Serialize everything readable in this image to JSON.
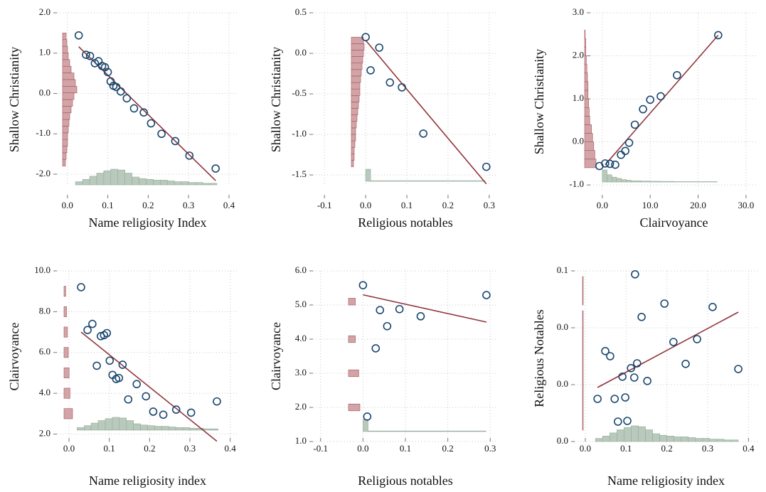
{
  "chart_data": [
    {
      "type": "scatter",
      "x_label": "Name religiosity Index",
      "y_label": "Shallow Christianity",
      "xlim": [
        -0.026,
        0.423
      ],
      "ylim": [
        -2.3,
        2.0
      ],
      "xticks": [
        {
          "value": 0,
          "label": "0.0"
        },
        0.1,
        0.2,
        0.3,
        0.4
      ],
      "yticks": [
        {
          "value": 2,
          "label": "2.0"
        },
        {
          "value": 1,
          "label": "1.0"
        },
        {
          "value": 0,
          "label": "0.0"
        },
        {
          "value": -1,
          "label": "-1.0"
        },
        {
          "value": -2,
          "label": "-2.0"
        }
      ],
      "grid": true,
      "point_color": "#1a476f",
      "fit_color": "#90353b",
      "x_hist_color": "#b9cabd",
      "y_hist_color": "#d3a4a7",
      "x": [
        0.028,
        0.046,
        0.056,
        0.068,
        0.077,
        0.086,
        0.093,
        0.1,
        0.107,
        0.114,
        0.121,
        0.132,
        0.147,
        0.165,
        0.189,
        0.207,
        0.233,
        0.267,
        0.302,
        0.367
      ],
      "y": [
        1.44,
        0.96,
        0.93,
        0.75,
        0.8,
        0.68,
        0.65,
        0.53,
        0.3,
        0.19,
        0.16,
        0.05,
        -0.12,
        -0.37,
        -0.47,
        -0.74,
        -1.0,
        -1.18,
        -1.54,
        -1.86
      ],
      "fit": {
        "x": [
          0.028,
          0.367
        ],
        "y": [
          1.16,
          -2.16
        ]
      },
      "x_hist": {
        "bins": [
          0.02,
          0.0375,
          0.055,
          0.0725,
          0.09,
          0.1075,
          0.125,
          0.1425,
          0.16,
          0.1775,
          0.195,
          0.2125,
          0.23,
          0.2475,
          0.265,
          0.2825,
          0.3,
          0.3175,
          0.335,
          0.3525,
          0.37
        ],
        "counts": [
          0.2,
          0.35,
          0.55,
          0.75,
          0.9,
          1.0,
          0.95,
          0.75,
          0.5,
          0.4,
          0.35,
          0.3,
          0.3,
          0.25,
          0.2,
          0.2,
          0.15,
          0.15,
          0.1,
          0.1
        ]
      },
      "y_hist": {
        "bins": [
          -1.8,
          -1.635,
          -1.47,
          -1.305,
          -1.14,
          -0.975,
          -0.81,
          -0.645,
          -0.48,
          -0.315,
          -0.15,
          0.015,
          0.18,
          0.345,
          0.51,
          0.675,
          0.84,
          1.005,
          1.17,
          1.335,
          1.5
        ],
        "counts": [
          0.2,
          0.25,
          0.3,
          0.35,
          0.35,
          0.4,
          0.45,
          0.5,
          0.6,
          0.7,
          0.8,
          1.0,
          0.9,
          0.8,
          0.6,
          0.5,
          0.4,
          0.35,
          0.3,
          0.25
        ]
      }
    },
    {
      "type": "scatter",
      "x_label": "Religious notables",
      "y_label": "Shallow Christianity",
      "xlim": [
        -0.128,
        0.321
      ],
      "ylim": [
        -1.64,
        0.5
      ],
      "xticks": [
        -0.1,
        {
          "value": 0,
          "label": "0.0"
        },
        0.1,
        0.2,
        0.3
      ],
      "yticks": [
        0.5,
        {
          "value": 0,
          "label": "0.0"
        },
        -0.5,
        {
          "value": -1,
          "label": "-1.0"
        },
        -1.5
      ],
      "grid": true,
      "point_color": "#1a476f",
      "fit_color": "#90353b",
      "x_hist_color": "#b9cabd",
      "y_hist_color": "#d3a4a7",
      "x": [
        0.0,
        0.033,
        0.012,
        0.059,
        0.088,
        0.14,
        0.293
      ],
      "y": [
        0.2,
        0.07,
        -0.21,
        -0.36,
        -0.42,
        -0.99,
        -1.4
      ],
      "fit": {
        "x": [
          0.0,
          0.293
        ],
        "y": [
          0.16,
          -1.61
        ]
      },
      "x_hist": {
        "bins": [
          0,
          0.012,
          0.29
        ],
        "counts": [
          1.0,
          0.05
        ]
      },
      "y_hist": {
        "bins": [
          -1.4,
          -1.32,
          -1.24,
          -1.16,
          -1.08,
          -1.0,
          -0.92,
          -0.84,
          -0.76,
          -0.68,
          -0.6,
          -0.52,
          -0.44,
          -0.36,
          -0.28,
          -0.2,
          -0.12,
          -0.04,
          0.04,
          0.12,
          0.2
        ],
        "counts": [
          0.15,
          0.2,
          0.2,
          0.25,
          0.3,
          0.3,
          0.35,
          0.4,
          0.45,
          0.5,
          0.55,
          0.6,
          0.6,
          0.65,
          0.7,
          0.75,
          0.8,
          0.85,
          0.9,
          0.85
        ]
      }
    },
    {
      "type": "scatter",
      "x_label": "Clairvoyance",
      "y_label": "Shallow Christianity",
      "xlim": [
        -2.5,
        32.4
      ],
      "ylim": [
        -1.13,
        3.0
      ],
      "xticks": [
        {
          "value": 0,
          "label": "0.0"
        },
        {
          "value": 10,
          "label": "10.0"
        },
        {
          "value": 20,
          "label": "20.0"
        },
        {
          "value": 30,
          "label": "30.0"
        }
      ],
      "yticks": [
        {
          "value": 3,
          "label": "3.0"
        },
        {
          "value": 2,
          "label": "2.0"
        },
        {
          "value": 1,
          "label": "1.0"
        },
        {
          "value": 0,
          "label": "0.0"
        },
        {
          "value": -1,
          "label": "-1.0"
        }
      ],
      "grid": true,
      "point_color": "#1a476f",
      "fit_color": "#90353b",
      "x_hist_color": "#b9cabd",
      "y_hist_color": "#d3a4a7",
      "x": [
        -0.6,
        0.6,
        1.6,
        2.7,
        3.9,
        4.8,
        5.6,
        6.8,
        8.5,
        10.0,
        12.2,
        15.6,
        24.2
      ],
      "y": [
        -0.56,
        -0.5,
        -0.51,
        -0.53,
        -0.3,
        -0.21,
        -0.02,
        0.4,
        0.76,
        0.98,
        1.06,
        1.55,
        2.48
      ],
      "fit": {
        "x": [
          0.6,
          24.2
        ],
        "y": [
          -0.53,
          2.48
        ]
      },
      "x_hist": {
        "bins": [
          0,
          1,
          2,
          3,
          4,
          5,
          6,
          8,
          10,
          12,
          15,
          24
        ],
        "counts": [
          1.0,
          0.6,
          0.4,
          0.3,
          0.2,
          0.15,
          0.1,
          0.08,
          0.06,
          0.05,
          0.03
        ]
      },
      "y_hist": {
        "bins": [
          -0.6,
          -0.4,
          -0.2,
          0,
          0.2,
          0.4,
          0.6,
          0.8,
          1.0,
          1.2,
          1.4,
          1.6,
          1.8,
          2.0,
          2.2,
          2.4,
          2.6
        ],
        "counts": [
          1.0,
          0.9,
          0.8,
          0.7,
          0.6,
          0.45,
          0.4,
          0.35,
          0.3,
          0.3,
          0.25,
          0.2,
          0.15,
          0.1,
          0.1,
          0.05
        ]
      }
    },
    {
      "type": "scatter",
      "x_label": "Name religiosity index",
      "y_label": "Clairvoyance",
      "xlim": [
        -0.03,
        0.42
      ],
      "ylim": [
        1.6,
        10
      ],
      "xticks": [
        {
          "value": 0,
          "label": "0.0"
        },
        0.1,
        0.2,
        0.3,
        0.4
      ],
      "yticks": [
        {
          "value": 10,
          "label": "10.0"
        },
        {
          "value": 8,
          "label": "8.0"
        },
        {
          "value": 6,
          "label": "6.0"
        },
        {
          "value": 4,
          "label": "4.0"
        },
        {
          "value": 2,
          "label": "2.0"
        }
      ],
      "grid": true,
      "point_color": "#1a476f",
      "fit_color": "#90353b",
      "x_hist_color": "#b9cabd",
      "y_hist_color": "#d3a4a7",
      "x": [
        0.03,
        0.046,
        0.058,
        0.069,
        0.079,
        0.087,
        0.094,
        0.101,
        0.108,
        0.117,
        0.124,
        0.133,
        0.147,
        0.168,
        0.191,
        0.209,
        0.234,
        0.266,
        0.303,
        0.367
      ],
      "y": [
        9.2,
        7.1,
        7.4,
        5.35,
        6.8,
        6.85,
        6.95,
        5.6,
        4.9,
        4.7,
        4.75,
        5.4,
        3.7,
        4.45,
        3.85,
        3.1,
        2.95,
        3.2,
        3.05,
        3.6
      ],
      "fit": {
        "x": [
          0.03,
          0.367
        ],
        "y": [
          7.0,
          1.65
        ]
      },
      "x_hist": {
        "bins": [
          0.02,
          0.0375,
          0.055,
          0.0725,
          0.09,
          0.1075,
          0.125,
          0.1425,
          0.16,
          0.1775,
          0.195,
          0.2125,
          0.23,
          0.2475,
          0.265,
          0.2825,
          0.3,
          0.3175,
          0.335,
          0.3525,
          0.37
        ],
        "counts": [
          0.2,
          0.35,
          0.55,
          0.75,
          0.9,
          1.0,
          0.95,
          0.75,
          0.5,
          0.4,
          0.35,
          0.3,
          0.3,
          0.25,
          0.2,
          0.2,
          0.15,
          0.15,
          0.1,
          0.1
        ]
      },
      "y_hist": {
        "bins": [
          2.75,
          3.25,
          3.75,
          4.25,
          4.75,
          5.25,
          5.75,
          6.25,
          6.75,
          7.25,
          7.75,
          8.25,
          8.75,
          9.25
        ],
        "counts": [
          1.0,
          0,
          0.7,
          0,
          0.6,
          0,
          0.5,
          0,
          0.4,
          0,
          0.3,
          0,
          0.2
        ]
      }
    },
    {
      "type": "scatter",
      "x_label": "Religious notables",
      "y_label": "Clairvoyance",
      "xlim": [
        -0.118,
        0.318
      ],
      "ylim": [
        1,
        6
      ],
      "xticks": [
        -0.1,
        {
          "value": 0,
          "label": "0.0"
        },
        0.1,
        0.2,
        0.3
      ],
      "yticks": [
        {
          "value": 6,
          "label": "6.0"
        },
        {
          "value": 5,
          "label": "5.0"
        },
        {
          "value": 4,
          "label": "4.0"
        },
        {
          "value": 3,
          "label": "3.0"
        },
        {
          "value": 2,
          "label": "2.0"
        },
        {
          "value": 1,
          "label": "1.0"
        }
      ],
      "grid": true,
      "point_color": "#1a476f",
      "fit_color": "#90353b",
      "x_hist_color": "#b9cabd",
      "y_hist_color": "#d3a4a7",
      "x": [
        0.0,
        0.04,
        0.057,
        0.03,
        0.086,
        0.136,
        0.291,
        0.01
      ],
      "y": [
        5.58,
        4.85,
        4.38,
        3.73,
        4.88,
        4.67,
        5.29,
        1.73
      ],
      "fit": {
        "x": [
          0.0,
          0.291
        ],
        "y": [
          5.3,
          4.5
        ]
      },
      "x_hist": {
        "bins": [
          0,
          0.012,
          0.29
        ],
        "counts": [
          1.0,
          0.05
        ]
      },
      "y_hist": {
        "bins": [
          1.9,
          2.1,
          2.9,
          3.1,
          3.9,
          4.1,
          5.0,
          5.2
        ],
        "counts": [
          1.0,
          0,
          0.9,
          0,
          0.6,
          0,
          0.6
        ]
      }
    },
    {
      "type": "scatter",
      "x_label": "Name religiosity index",
      "y_label": "Religious Notables",
      "xlim": [
        -0.026,
        0.422
      ],
      "ylim": [
        -0.0015,
        0.06
      ],
      "xticks": [
        {
          "value": 0,
          "label": "0.0"
        },
        0.1,
        0.2,
        0.3,
        0.4
      ],
      "yticks": [
        {
          "value": 0.06,
          "label": "0.1"
        },
        {
          "value": 0.04,
          "label": "0.0"
        },
        {
          "value": 0.02,
          "label": "0.0"
        },
        {
          "value": 0,
          "label": "0.0"
        }
      ],
      "grid": true,
      "point_color": "#1a476f",
      "fit_color": "#90353b",
      "x_hist_color": "#b9cabd",
      "y_hist_color": "#d3a4a7",
      "x": [
        0.03,
        0.049,
        0.061,
        0.072,
        0.08,
        0.091,
        0.098,
        0.103,
        0.112,
        0.12,
        0.127,
        0.122,
        0.138,
        0.152,
        0.194,
        0.216,
        0.246,
        0.274,
        0.312,
        0.375
      ],
      "y": [
        0.015,
        0.0318,
        0.03,
        0.015,
        0.007,
        0.0228,
        0.0155,
        0.00725,
        0.0258,
        0.0225,
        0.0275,
        0.0588,
        0.0438,
        0.0213,
        0.0485,
        0.035,
        0.0273,
        0.036,
        0.0473,
        0.0255
      ],
      "fit": {
        "x": [
          0.03,
          0.375
        ],
        "y": [
          0.019,
          0.0455
        ]
      },
      "x_hist": {
        "bins": [
          0.025,
          0.0425,
          0.06,
          0.0775,
          0.095,
          0.1125,
          0.13,
          0.1475,
          0.165,
          0.1825,
          0.2,
          0.2175,
          0.235,
          0.2525,
          0.27,
          0.2875,
          0.305,
          0.3225,
          0.34,
          0.3575,
          0.375
        ],
        "counts": [
          0.2,
          0.35,
          0.55,
          0.75,
          0.9,
          1.0,
          0.95,
          0.75,
          0.5,
          0.4,
          0.35,
          0.3,
          0.3,
          0.25,
          0.2,
          0.2,
          0.15,
          0.15,
          0.1,
          0.1
        ]
      },
      "y_hist": {
        "bins": [
          0.004,
          0.046,
          0.048,
          0.058
        ],
        "counts": [
          0.05,
          0,
          0.05
        ]
      }
    }
  ]
}
